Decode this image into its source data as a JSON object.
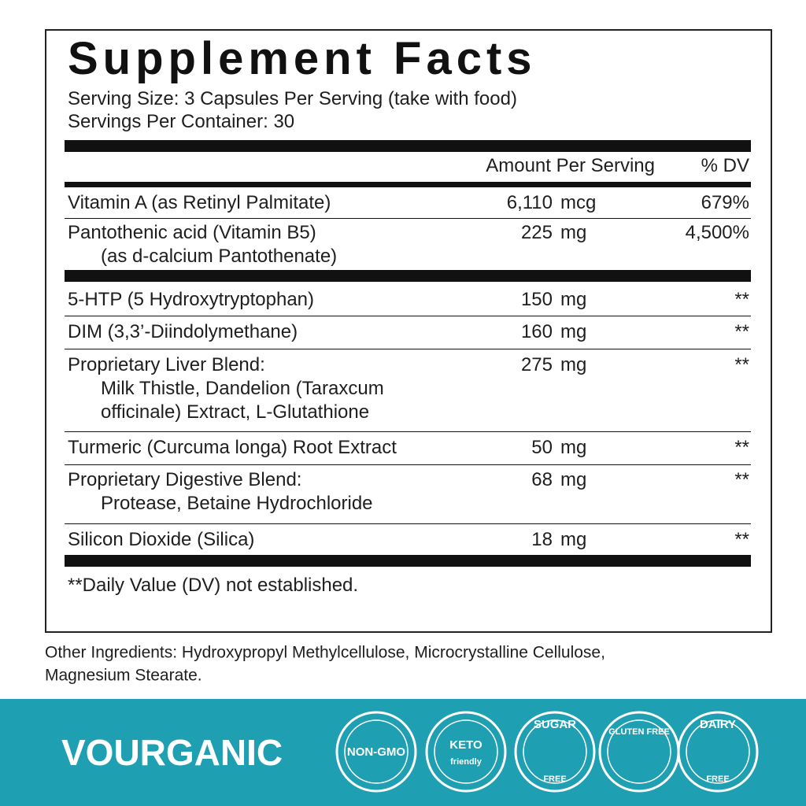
{
  "header": {
    "title": "Supplement Facts",
    "serving_size": "Serving Size: 3 Capsules Per Serving (take with food)",
    "servings_per_container": "Servings Per Container: 30"
  },
  "table": {
    "columns": [
      "Amount Per Serving",
      "% DV"
    ],
    "rows": [
      {
        "name": "Vitamin A (as Retinyl Palmitate)",
        "detail": [],
        "amount": "6,110",
        "unit": "mcg",
        "dv": "679%"
      },
      {
        "name": "Pantothenic acid (Vitamin B5)",
        "detail": [
          "(as d-calcium Pantothenate)"
        ],
        "amount": "225",
        "unit": "mg",
        "dv": "4,500%"
      },
      {
        "name": "5-HTP (5 Hydroxytryptophan)",
        "detail": [],
        "amount": "150",
        "unit": "mg",
        "dv": "**"
      },
      {
        "name": "DIM (3,3’-Diindolymethane)",
        "detail": [],
        "amount": "160",
        "unit": "mg",
        "dv": "**"
      },
      {
        "name": "Proprietary Liver Blend:",
        "detail": [
          "Milk Thistle, Dandelion (Taraxcum",
          "officinale) Extract, L-Glutathione"
        ],
        "amount": "275",
        "unit": "mg",
        "dv": "**"
      },
      {
        "name": "Turmeric (Curcuma longa) Root Extract",
        "detail": [],
        "amount": "50",
        "unit": "mg",
        "dv": "**"
      },
      {
        "name": "Proprietary Digestive Blend:",
        "detail": [
          "Protease, Betaine Hydrochloride"
        ],
        "amount": "68",
        "unit": "mg",
        "dv": "**"
      },
      {
        "name": "Silicon Dioxide (Silica)",
        "detail": [],
        "amount": "18",
        "unit": "mg",
        "dv": "**"
      }
    ]
  },
  "footnote": "**Daily Value (DV) not established.",
  "other_ingredients": [
    "Other Ingredients: Hydroxypropyl Methylcellulose, Microcrystalline Cellulose,",
    "Magnesium Stearate."
  ],
  "brand": "VOURGANIC",
  "badges": [
    [
      "NON-GMO"
    ],
    [
      "KETO",
      "friendly"
    ],
    [
      "SUGAR",
      "FREE"
    ],
    [
      "GLUTEN FREE"
    ],
    [
      "DAIRY",
      "FREE"
    ]
  ]
}
